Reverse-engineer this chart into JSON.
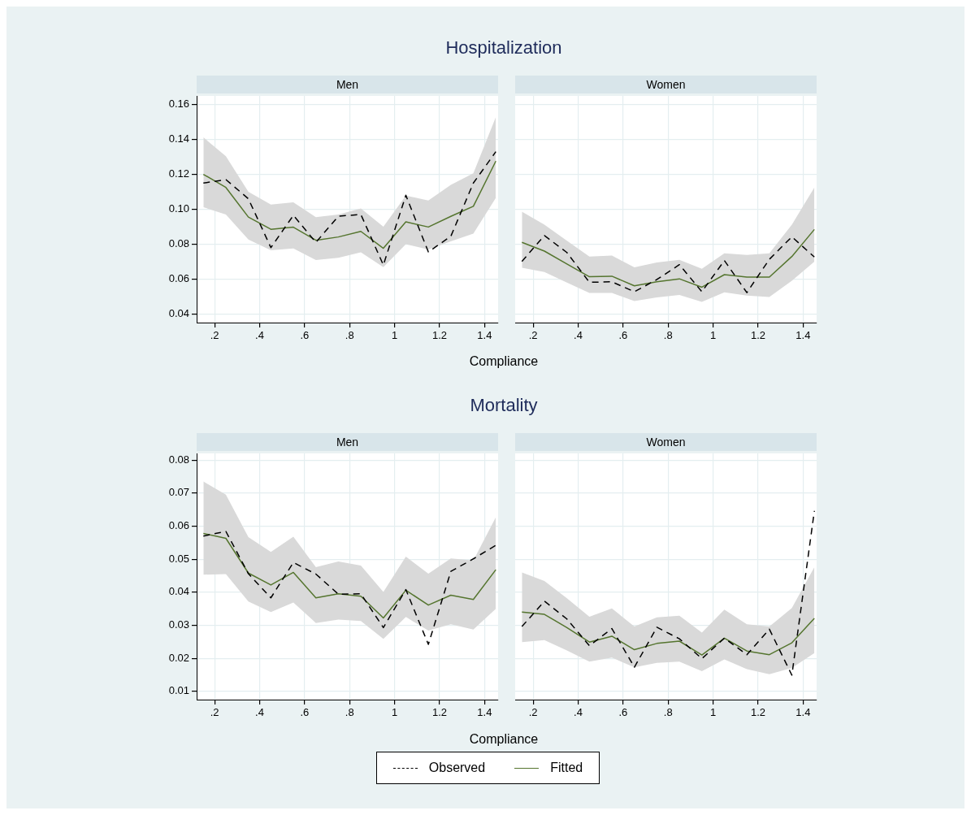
{
  "chart_data": [
    {
      "type": "line",
      "title": "Hospitalization",
      "subtitle": "Men",
      "xlabel": "Compliance",
      "x": [
        0.15,
        0.25,
        0.35,
        0.45,
        0.55,
        0.65,
        0.75,
        0.85,
        0.95,
        1.05,
        1.15,
        1.25,
        1.35,
        1.45
      ],
      "xlim": [
        0.12,
        1.46
      ],
      "xticks": [
        {
          "value": 0.2,
          "label": ".2"
        },
        {
          "value": 0.4,
          "label": ".4"
        },
        {
          "value": 0.6,
          "label": ".6"
        },
        {
          "value": 0.8,
          "label": ".8"
        },
        1,
        1.2,
        1.4
      ],
      "ylim": [
        0.035,
        0.165
      ],
      "yticks": [
        0.04,
        0.06,
        0.08,
        {
          "value": 0.1,
          "label": "0.10"
        },
        0.12,
        0.14,
        0.16
      ],
      "grid": true,
      "series": [
        {
          "color": "#55752f",
          "line_style": "solid",
          "values": [
            0.12,
            0.1125,
            0.0955,
            0.0885,
            0.0897,
            0.0822,
            0.0841,
            0.0873,
            0.0776,
            0.0928,
            0.0898,
            0.0959,
            0.1017,
            0.1276
          ],
          "lower": [
            0.1012,
            0.097,
            0.0826,
            0.0765,
            0.0775,
            0.0709,
            0.0722,
            0.0753,
            0.0668,
            0.08,
            0.0769,
            0.0816,
            0.086,
            0.1065
          ],
          "upper": [
            0.1412,
            0.1304,
            0.11,
            0.1027,
            0.104,
            0.0954,
            0.097,
            0.1005,
            0.09,
            0.1078,
            0.105,
            0.114,
            0.1206,
            0.1529
          ]
        },
        {
          "color": "#000000",
          "line_style": "dashed",
          "values": [
            0.115,
            0.117,
            0.106,
            0.078,
            0.0965,
            0.081,
            0.096,
            0.097,
            0.068,
            0.108,
            0.0755,
            0.0845,
            0.115,
            0.133
          ]
        }
      ]
    },
    {
      "type": "line",
      "subtitle": "Women",
      "x": [
        0.15,
        0.25,
        0.35,
        0.45,
        0.55,
        0.65,
        0.75,
        0.85,
        0.95,
        1.05,
        1.15,
        1.25,
        1.35,
        1.45
      ],
      "xlim": [
        0.12,
        1.46
      ],
      "xticks": [
        {
          "value": 0.2,
          "label": ".2"
        },
        {
          "value": 0.4,
          "label": ".4"
        },
        {
          "value": 0.6,
          "label": ".6"
        },
        {
          "value": 0.8,
          "label": ".8"
        },
        1,
        1.2,
        1.4
      ],
      "ylim": [
        0.035,
        0.165
      ],
      "yticks": [
        0.04,
        0.06,
        0.08,
        0.1,
        0.12,
        0.14,
        0.16
      ],
      "grid": true,
      "tick_labels": "x",
      "series": [
        {
          "color": "#55752f",
          "line_style": "solid",
          "values": [
            0.081,
            0.076,
            0.0686,
            0.0613,
            0.0616,
            0.0561,
            0.0584,
            0.0601,
            0.0553,
            0.0625,
            0.0611,
            0.0611,
            0.0729,
            0.0884
          ],
          "lower": [
            0.0664,
            0.064,
            0.0579,
            0.052,
            0.052,
            0.0473,
            0.0494,
            0.0509,
            0.0469,
            0.0523,
            0.0505,
            0.0497,
            0.059,
            0.0699
          ],
          "upper": [
            0.0986,
            0.0912,
            0.0819,
            0.0729,
            0.0734,
            0.0667,
            0.0695,
            0.071,
            0.0659,
            0.0747,
            0.0738,
            0.0747,
            0.0911,
            0.1125
          ]
        },
        {
          "color": "#000000",
          "line_style": "dashed",
          "values": [
            0.0701,
            0.0849,
            0.0752,
            0.0581,
            0.0584,
            0.0527,
            0.0597,
            0.0682,
            0.0527,
            0.0706,
            0.0522,
            0.0713,
            0.0842,
            0.0726
          ]
        }
      ]
    },
    {
      "type": "line",
      "title": "Mortality",
      "subtitle": "Men",
      "xlabel": "Compliance",
      "x": [
        0.15,
        0.25,
        0.35,
        0.45,
        0.55,
        0.65,
        0.75,
        0.85,
        0.95,
        1.05,
        1.15,
        1.25,
        1.35,
        1.45
      ],
      "xlim": [
        0.12,
        1.46
      ],
      "xticks": [
        {
          "value": 0.2,
          "label": ".2"
        },
        {
          "value": 0.4,
          "label": ".4"
        },
        {
          "value": 0.6,
          "label": ".6"
        },
        {
          "value": 0.8,
          "label": ".8"
        },
        1,
        1.2,
        1.4
      ],
      "ylim": [
        0.0075,
        0.082
      ],
      "yticks": [
        0.01,
        0.02,
        0.03,
        0.04,
        0.05,
        0.06,
        0.07,
        0.08
      ],
      "grid": true,
      "series": [
        {
          "color": "#55752f",
          "line_style": "solid",
          "values": [
            0.0578,
            0.0563,
            0.0458,
            0.0422,
            0.046,
            0.0383,
            0.0395,
            0.0388,
            0.0322,
            0.0406,
            0.0361,
            0.0391,
            0.0378,
            0.0468
          ],
          "lower": [
            0.0453,
            0.0455,
            0.0372,
            0.034,
            0.0369,
            0.0307,
            0.0317,
            0.0313,
            0.0259,
            0.0325,
            0.0284,
            0.0303,
            0.0287,
            0.035
          ],
          "upper": [
            0.0735,
            0.0695,
            0.0567,
            0.0522,
            0.0568,
            0.0476,
            0.0493,
            0.0481,
            0.0401,
            0.0508,
            0.0456,
            0.0502,
            0.0496,
            0.0627
          ]
        },
        {
          "color": "#000000",
          "line_style": "dashed",
          "values": [
            0.057,
            0.0584,
            0.0456,
            0.0383,
            0.049,
            0.0455,
            0.0394,
            0.0395,
            0.0293,
            0.0408,
            0.0242,
            0.0463,
            0.0501,
            0.0542
          ]
        }
      ]
    },
    {
      "type": "line",
      "subtitle": "Women",
      "x": [
        0.15,
        0.25,
        0.35,
        0.45,
        0.55,
        0.65,
        0.75,
        0.85,
        0.95,
        1.05,
        1.15,
        1.25,
        1.35,
        1.45
      ],
      "xlim": [
        0.12,
        1.46
      ],
      "xticks": [
        {
          "value": 0.2,
          "label": ".2"
        },
        {
          "value": 0.4,
          "label": ".4"
        },
        {
          "value": 0.6,
          "label": ".6"
        },
        {
          "value": 0.8,
          "label": ".8"
        },
        1,
        1.2,
        1.4
      ],
      "ylim": [
        0.0075,
        0.082
      ],
      "yticks": [
        0.01,
        0.02,
        0.03,
        0.04,
        0.05,
        0.06,
        0.07,
        0.08
      ],
      "grid": true,
      "tick_labels": "x",
      "legend": "bottom",
      "series": [
        {
          "name": "Fitted",
          "color": "#55752f",
          "line_style": "solid",
          "values": [
            0.034,
            0.0333,
            0.0293,
            0.0249,
            0.0267,
            0.0226,
            0.0245,
            0.0252,
            0.021,
            0.0261,
            0.0222,
            0.0211,
            0.0247,
            0.0321
          ],
          "lower": [
            0.0249,
            0.0255,
            0.0224,
            0.019,
            0.0202,
            0.0173,
            0.0186,
            0.019,
            0.0161,
            0.0197,
            0.0167,
            0.0152,
            0.0171,
            0.0216
          ],
          "upper": [
            0.046,
            0.0434,
            0.0382,
            0.0326,
            0.0351,
            0.0296,
            0.0324,
            0.0329,
            0.0278,
            0.0347,
            0.0303,
            0.0296,
            0.0352,
            0.0476
          ]
        },
        {
          "name": "Observed",
          "color": "#000000",
          "line_style": "dashed",
          "values": [
            0.0296,
            0.0373,
            0.0319,
            0.0238,
            0.029,
            0.0173,
            0.0294,
            0.0259,
            0.0199,
            0.0261,
            0.0211,
            0.0288,
            0.0149,
            0.0646
          ]
        }
      ]
    }
  ]
}
